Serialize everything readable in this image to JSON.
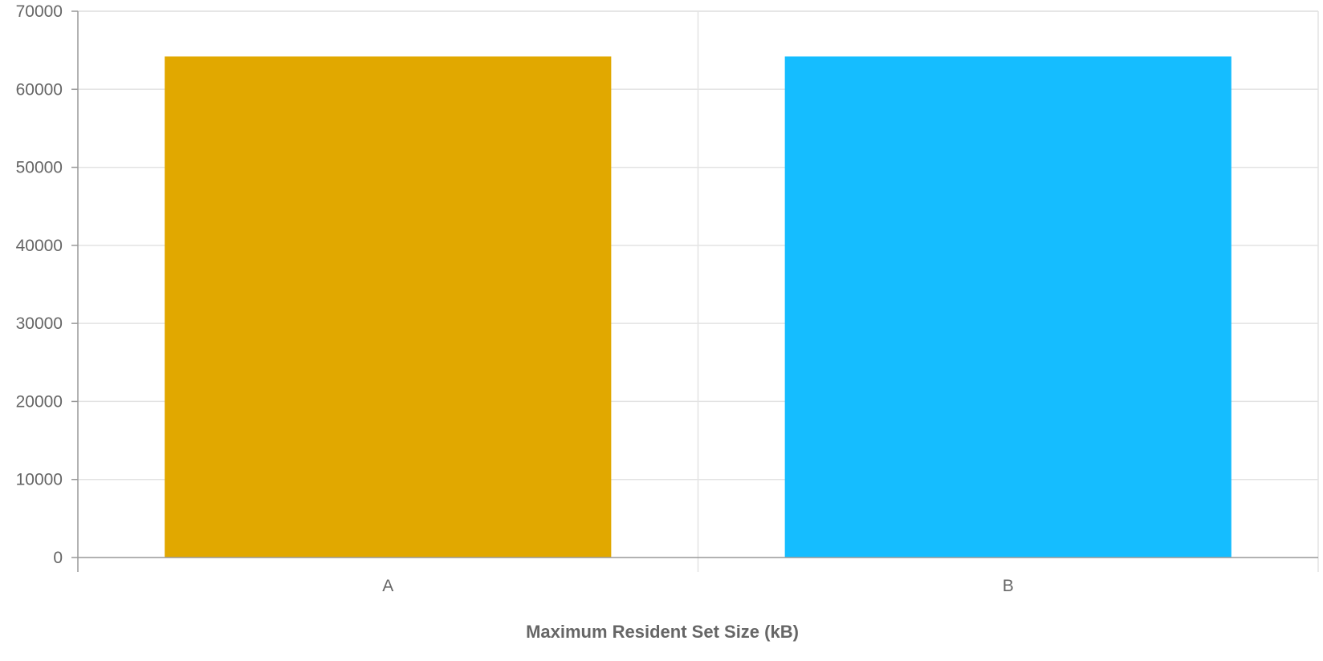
{
  "chart_data": {
    "type": "bar",
    "categories": [
      "A",
      "B"
    ],
    "values": [
      64200,
      64200
    ],
    "colors": [
      "#e1a800",
      "#15bdff"
    ],
    "title": "",
    "xlabel": "Maximum Resident Set Size (kB)",
    "ylabel": "",
    "ylim": [
      0,
      70000
    ],
    "yticks": [
      0,
      10000,
      20000,
      30000,
      40000,
      50000,
      60000,
      70000
    ],
    "grid": true,
    "legend": "none"
  }
}
